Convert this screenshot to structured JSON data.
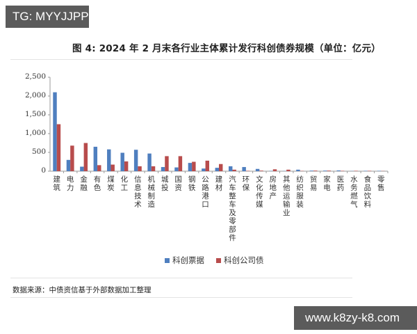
{
  "watermarks": {
    "top": "TG: MYYJJPP",
    "bottom": "www.k8zy-k8.com"
  },
  "figure_title": "图 4:   2024 年 2 月末各行业主体累计发行科创债券规模（单位：亿元）",
  "source_note": "数据来源：中债资信基于外部数据加工整理",
  "colors": {
    "series_1": "#4f7fbf",
    "series_2": "#b84c4c"
  },
  "chart_data": {
    "type": "bar",
    "title": "2024 年 2 月末各行业主体累计发行科创债券规模（单位：亿元）",
    "xlabel": "",
    "ylabel": "",
    "ylim": [
      0,
      2500
    ],
    "yticks": [
      0,
      500,
      1000,
      1500,
      2000,
      2500
    ],
    "ytick_labels": [
      "0",
      "500",
      "1,000",
      "1,500",
      "2,000",
      "2,500"
    ],
    "grid": false,
    "legend_position": "bottom",
    "categories": [
      "建筑",
      "电力",
      "金融",
      "有色",
      "煤炭",
      "化工",
      "信息技术",
      "机械制造",
      "城投",
      "国资",
      "钢铁",
      "公路港口",
      "建材",
      "汽车整车及零部件",
      "环保",
      "文化传媒",
      "房地产",
      "其他运输业",
      "纺织服装",
      "贸易",
      "家电",
      "医药",
      "水务燃气",
      "食品饮料",
      "零售"
    ],
    "series": [
      {
        "name": "科创票据",
        "color": "#4f7fbf",
        "values": [
          2100,
          300,
          120,
          650,
          580,
          490,
          570,
          470,
          110,
          100,
          220,
          70,
          90,
          130,
          110,
          60,
          8,
          5,
          40,
          15,
          15,
          20,
          5,
          10,
          10
        ]
      },
      {
        "name": "科创公司债",
        "color": "#b84c4c",
        "values": [
          1250,
          680,
          750,
          160,
          175,
          260,
          130,
          130,
          400,
          400,
          250,
          280,
          190,
          40,
          10,
          15,
          50,
          40,
          8,
          15,
          15,
          10,
          10,
          10,
          5
        ]
      }
    ]
  }
}
